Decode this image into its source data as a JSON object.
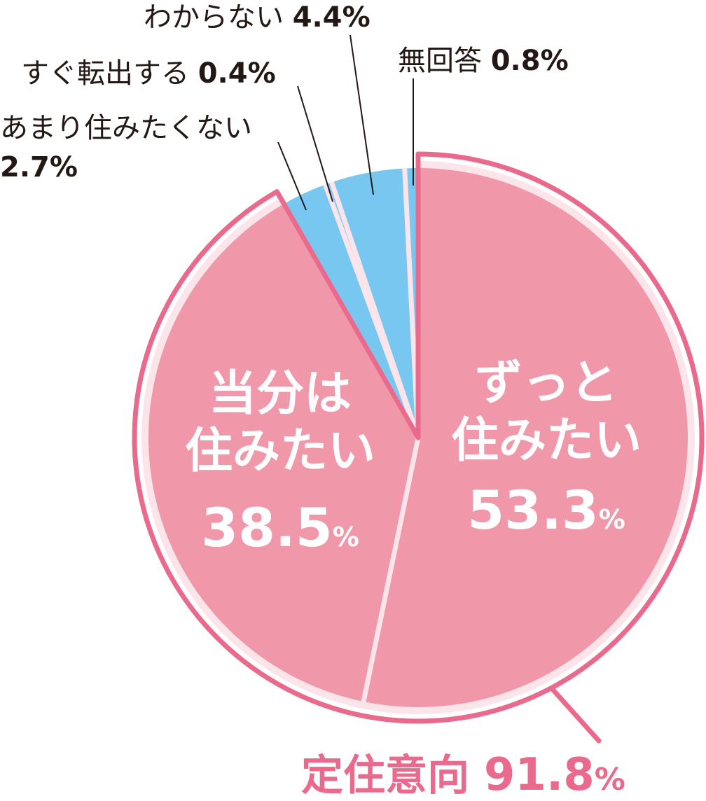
{
  "chart_data": {
    "type": "pie",
    "start_angle_deg": 0,
    "direction": "clockwise",
    "slices": [
      {
        "key": "zutto",
        "label_lines": [
          "ずっと",
          "住みたい"
        ],
        "value": 53.3,
        "value_text": "53.3",
        "unit": "%",
        "color": "#F097AA",
        "label_inside": true
      },
      {
        "key": "toubun",
        "label_lines": [
          "当分は",
          "住みたい"
        ],
        "value": 38.5,
        "value_text": "38.5",
        "unit": "%",
        "color": "#F097AA",
        "label_inside": true
      },
      {
        "key": "amari",
        "label_lines": [
          "あまり住みたくない"
        ],
        "value": 2.7,
        "value_text": "2.7%",
        "unit": "",
        "color": "#77C7F0",
        "label_inside": false
      },
      {
        "key": "sugu",
        "label_lines": [
          "すぐ転出する"
        ],
        "value": 0.4,
        "value_text": "0.4%",
        "unit": "",
        "color": "#77C7F0",
        "label_inside": false
      },
      {
        "key": "wakaranai",
        "label_lines": [
          "わからない"
        ],
        "value": 4.4,
        "value_text": "4.4%",
        "unit": "",
        "color": "#77C7F0",
        "label_inside": false
      },
      {
        "key": "mukaitou",
        "label_lines": [
          "無回答"
        ],
        "value": 0.8,
        "value_text": "0.8%",
        "unit": "",
        "color": "#77C7F0",
        "label_inside": false
      }
    ],
    "group_highlight": {
      "label": "定住意向",
      "value": 91.8,
      "value_text": "91.8",
      "unit": "%",
      "includes": [
        "zutto",
        "toubun"
      ],
      "color": "#E96A8D"
    },
    "colors": {
      "pink": "#F097AA",
      "blue": "#77C7F0",
      "outline": "#E96A8D",
      "separator": "#FBE4EA",
      "text": "#231815"
    },
    "title": "",
    "legend": "none"
  }
}
